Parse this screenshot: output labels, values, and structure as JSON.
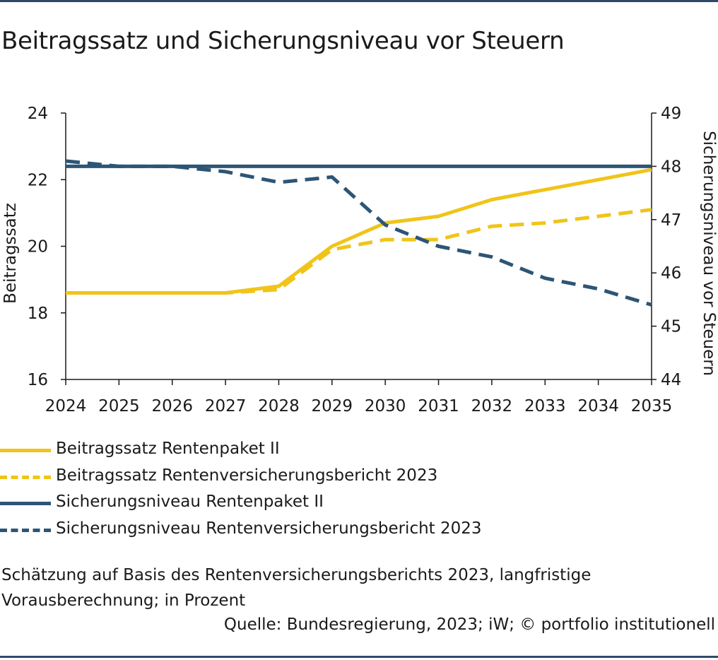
{
  "title": "Beitragssatz und Sicherungsniveau vor Steuern",
  "colors": {
    "gold": "#f0c419",
    "navy": "#2d5575",
    "rule": "#2d4a6b"
  },
  "chart_data": {
    "type": "line",
    "x": [
      2024,
      2025,
      2026,
      2027,
      2028,
      2029,
      2030,
      2031,
      2032,
      2033,
      2034,
      2035
    ],
    "x_tick_labels": [
      "2024",
      "2025",
      "2026",
      "2027",
      "2028",
      "2029",
      "2030",
      "2031",
      "2032",
      "2033",
      "2034",
      "2035"
    ],
    "ylabel_left": "Beitragssatz",
    "ylabel_right": "Sicherungsniveau vor Steuern",
    "ylim_left": [
      16,
      24
    ],
    "ylim_right": [
      44,
      49
    ],
    "y_ticks_left": [
      "16",
      "18",
      "20",
      "22",
      "24"
    ],
    "y_ticks_right": [
      "44",
      "45",
      "46",
      "47",
      "48",
      "49"
    ],
    "grid": false,
    "series": [
      {
        "name": "Beitragssatz Rentenpaket II",
        "axis": "left",
        "style": "solid",
        "color": "#f0c419",
        "values": [
          18.6,
          18.6,
          18.6,
          18.6,
          18.8,
          20.0,
          20.7,
          20.9,
          21.4,
          21.7,
          22.0,
          22.3
        ]
      },
      {
        "name": "Beitragssatz Rentenversicherungsbericht 2023",
        "axis": "left",
        "style": "dashed",
        "color": "#f0c419",
        "values": [
          18.6,
          18.6,
          18.6,
          18.6,
          18.7,
          19.9,
          20.2,
          20.2,
          20.6,
          20.7,
          20.9,
          21.1
        ]
      },
      {
        "name": "Sicherungsniveau Rentenpaket II",
        "axis": "right",
        "style": "solid",
        "color": "#2d5575",
        "values": [
          48.0,
          48.0,
          48.0,
          48.0,
          48.0,
          48.0,
          48.0,
          48.0,
          48.0,
          48.0,
          48.0,
          48.0
        ]
      },
      {
        "name": "Sicherungsniveau Rentenversicherungsbericht 2023",
        "axis": "right",
        "style": "dashed",
        "color": "#2d5575",
        "values": [
          48.1,
          48.0,
          48.0,
          47.9,
          47.7,
          47.8,
          46.9,
          46.5,
          46.3,
          45.9,
          45.7,
          45.4
        ]
      }
    ]
  },
  "note": "Schätzung auf Basis des Rentenversicherungsberichts 2023, langfristige Vorausberechnung; in Prozent",
  "source": "Quelle: Bundesregierung, 2023; iW; © portfolio institutionell"
}
